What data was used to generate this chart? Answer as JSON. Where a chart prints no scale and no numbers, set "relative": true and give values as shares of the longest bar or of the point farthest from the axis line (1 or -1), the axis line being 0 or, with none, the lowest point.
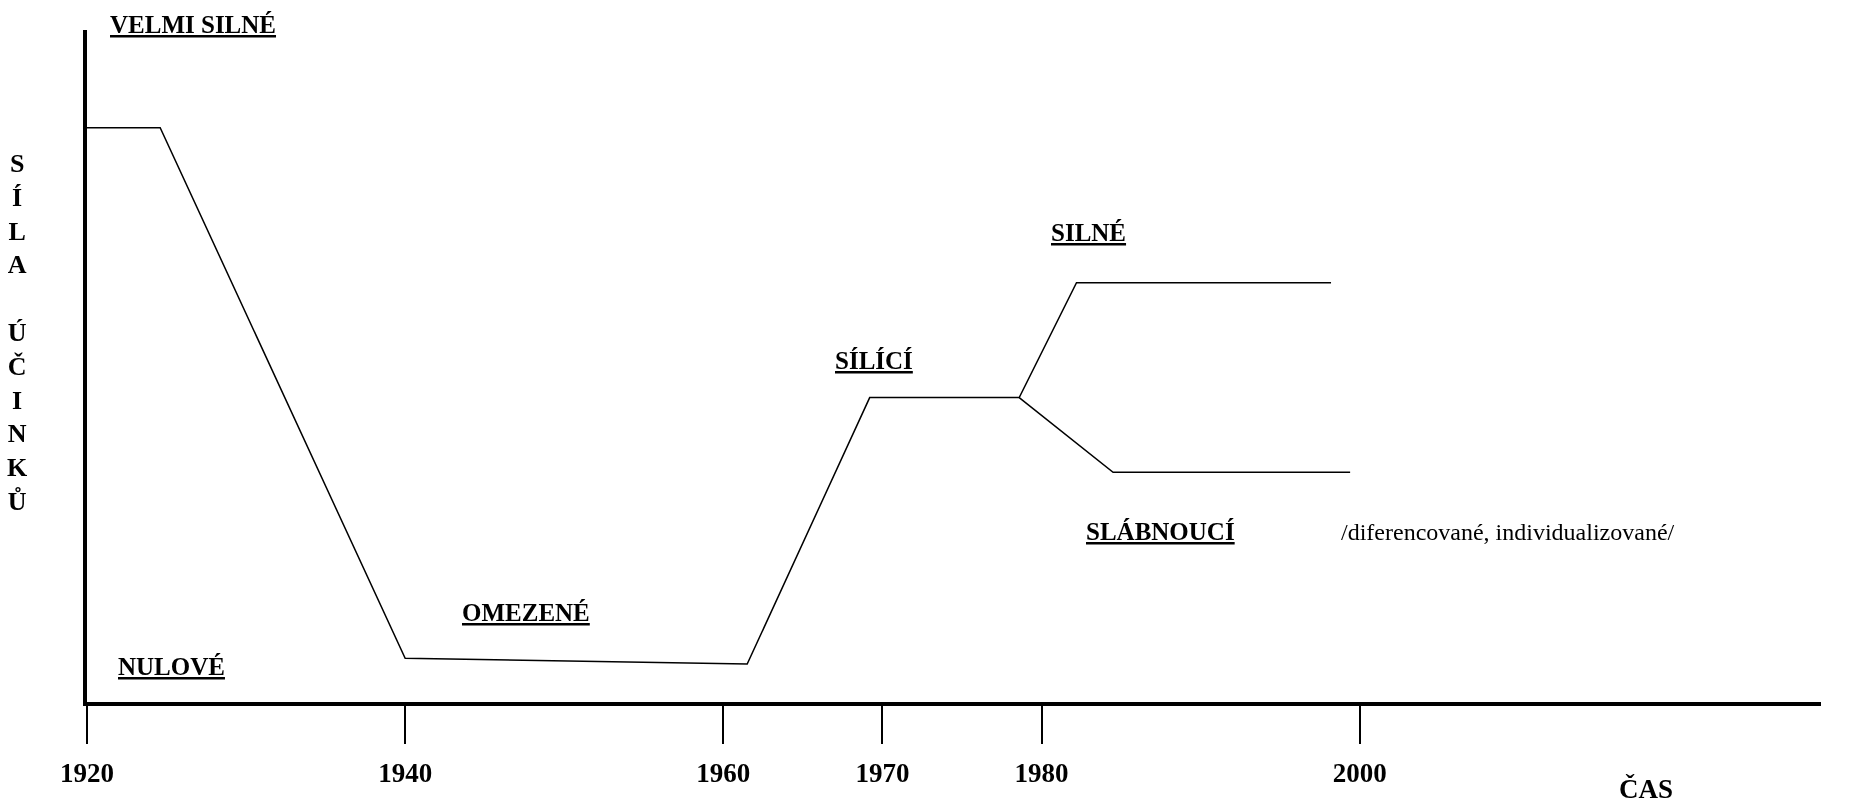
{
  "chart_data": {
    "type": "line",
    "relative": true,
    "xlabel": "ČAS",
    "ylabel": "SÍLA ÚČINKŮ",
    "xlim": [
      1920,
      2029
    ],
    "xticks": [
      1920,
      1940,
      1960,
      1970,
      1980,
      2000
    ],
    "marker": "none",
    "line_style": "solid",
    "series": [
      {
        "color": "#000000",
        "x": [
          1920,
          1924.6,
          1940,
          1961.5,
          1969.2,
          1978.6,
          1982.2,
          1998.2
        ],
        "values": [
          1,
          1,
          0.076,
          0.066,
          0.53,
          0.53,
          0.73,
          0.73
        ]
      },
      {
        "color": "#000000",
        "x": [
          1978.6,
          1984.5,
          1999.4
        ],
        "values": [
          0.53,
          0.4,
          0.4
        ]
      }
    ],
    "annotations": [
      "VELMI SILNÉ",
      "NULOVÉ",
      "OMEZENÉ",
      "SÍLÍCÍ",
      "SILNÉ",
      "SLÁBNOUCÍ",
      "/diferencované, individualizované/"
    ]
  }
}
